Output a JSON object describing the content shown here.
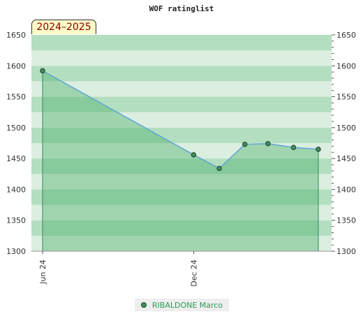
{
  "chart_data": {
    "type": "area",
    "title": "WOF ratinglist",
    "badge": "2024–2025",
    "ylim": [
      1300,
      1650
    ],
    "y_ticks": [
      1300,
      1350,
      1400,
      1450,
      1500,
      1550,
      1600,
      1650
    ],
    "x_ticks": [
      "Jun 24",
      "Dec 24"
    ],
    "series": [
      {
        "name": "RIBALDONE Marco",
        "points": [
          {
            "x": "2024-06-01",
            "y": 1592
          },
          {
            "x": "2024-12-01",
            "y": 1456
          },
          {
            "x": "2025-01-01",
            "y": 1434
          },
          {
            "x": "2025-02-01",
            "y": 1473
          },
          {
            "x": "2025-03-01",
            "y": 1474
          },
          {
            "x": "2025-04-01",
            "y": 1468
          },
          {
            "x": "2025-05-01",
            "y": 1465
          }
        ]
      }
    ],
    "legend_position": "bottom-center",
    "colors": {
      "line": "#5fa8d3",
      "fill": "#3faa5f",
      "marker": "#3f8f5a",
      "band_dark": "#b4dec0",
      "band_light": "#dbeee0"
    }
  }
}
